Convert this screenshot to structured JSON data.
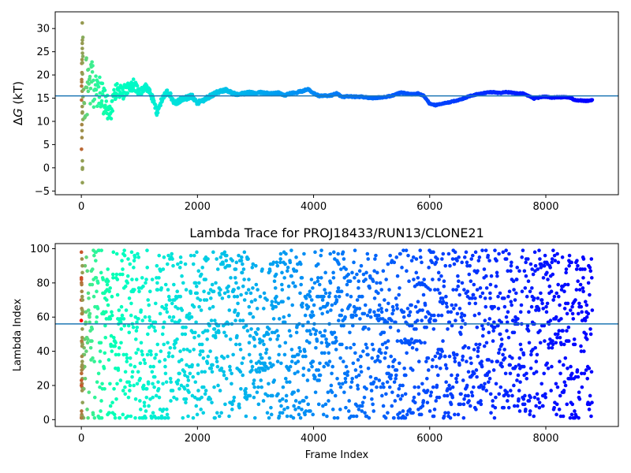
{
  "chart_data": [
    {
      "type": "scatter",
      "title": "",
      "xlabel": "",
      "ylabel": "ΔG (kT)",
      "ylabel_symbol": "Δ",
      "ylabel_var": "G",
      "ylabel_unit": " (kT)",
      "xlim": [
        -450,
        9250
      ],
      "ylim": [
        -5.8,
        33.6
      ],
      "xticks": [
        0,
        2000,
        4000,
        6000,
        8000
      ],
      "yticks": [
        -5,
        0,
        5,
        10,
        15,
        20,
        25,
        30
      ],
      "hline": 15.5,
      "hline_color": "#1f77b4",
      "colormap": "rainbow_r",
      "x_max": 8800,
      "grid": false,
      "trend": [
        [
          0,
          15.5
        ],
        [
          100,
          17
        ],
        [
          200,
          18
        ],
        [
          300,
          17
        ],
        [
          400,
          14
        ],
        [
          500,
          12
        ],
        [
          600,
          17
        ],
        [
          700,
          16
        ],
        [
          800,
          17
        ],
        [
          900,
          18
        ],
        [
          1000,
          16
        ],
        [
          1100,
          17.5
        ],
        [
          1200,
          16
        ],
        [
          1300,
          12
        ],
        [
          1400,
          15
        ],
        [
          1500,
          16.5
        ],
        [
          1600,
          14
        ],
        [
          1700,
          14.5
        ],
        [
          1800,
          15
        ],
        [
          1900,
          15.5
        ],
        [
          2000,
          14
        ],
        [
          2100,
          14.5
        ],
        [
          2200,
          15.3
        ],
        [
          2300,
          16
        ],
        [
          2400,
          16.5
        ],
        [
          2500,
          16.8
        ],
        [
          2600,
          16
        ],
        [
          2700,
          15.8
        ],
        [
          2800,
          16
        ],
        [
          2900,
          16.2
        ],
        [
          3000,
          16
        ],
        [
          3100,
          16.2
        ],
        [
          3200,
          16.1
        ],
        [
          3300,
          16
        ],
        [
          3400,
          16.1
        ],
        [
          3500,
          15.6
        ],
        [
          3600,
          16
        ],
        [
          3700,
          16.2
        ],
        [
          3800,
          16.5
        ],
        [
          3900,
          17
        ],
        [
          4000,
          16
        ],
        [
          4100,
          15.5
        ],
        [
          4200,
          15.5
        ],
        [
          4300,
          15.6
        ],
        [
          4400,
          16
        ],
        [
          4500,
          15.2
        ],
        [
          4600,
          15.4
        ],
        [
          4700,
          15.3
        ],
        [
          4800,
          15.3
        ],
        [
          4900,
          15.2
        ],
        [
          5000,
          15
        ],
        [
          5100,
          15.1
        ],
        [
          5200,
          15.2
        ],
        [
          5300,
          15.4
        ],
        [
          5400,
          15.7
        ],
        [
          5500,
          16.2
        ],
        [
          5600,
          16
        ],
        [
          5700,
          15.8
        ],
        [
          5800,
          16
        ],
        [
          5900,
          15.5
        ],
        [
          6000,
          13.8
        ],
        [
          6100,
          13.5
        ],
        [
          6200,
          13.8
        ],
        [
          6300,
          14
        ],
        [
          6400,
          14.3
        ],
        [
          6500,
          14.6
        ],
        [
          6600,
          15
        ],
        [
          6700,
          15.5
        ],
        [
          6800,
          15.8
        ],
        [
          6900,
          16
        ],
        [
          7000,
          16.2
        ],
        [
          7100,
          16.3
        ],
        [
          7200,
          16.1
        ],
        [
          7300,
          16.3
        ],
        [
          7400,
          16.2
        ],
        [
          7500,
          16
        ],
        [
          7600,
          16
        ],
        [
          7700,
          15.5
        ],
        [
          7800,
          14.9
        ],
        [
          7900,
          15.2
        ],
        [
          8000,
          15.3
        ],
        [
          8100,
          15.1
        ],
        [
          8200,
          15.2
        ],
        [
          8300,
          15.2
        ],
        [
          8400,
          15.2
        ],
        [
          8500,
          14.6
        ],
        [
          8600,
          14.5
        ],
        [
          8700,
          14.4
        ],
        [
          8800,
          14.6
        ]
      ],
      "early_values": [
        31.2,
        28.1,
        27.5,
        26.8,
        24.7,
        23.3,
        22.5,
        20.5,
        20.2,
        19,
        17.6,
        16.5,
        15.3,
        14.6,
        13.2,
        12,
        11.8,
        10.4,
        9.3,
        8,
        6.5,
        4,
        1.5,
        0,
        -0.3,
        -3.2,
        25.7,
        24,
        22.6,
        18.5
      ]
    },
    {
      "type": "scatter",
      "title": "Lambda Trace for PROJ18433/RUN13/CLONE21",
      "xlabel": "Frame Index",
      "ylabel": "Lambda Index",
      "xlim": [
        -450,
        9250
      ],
      "ylim": [
        -4,
        103
      ],
      "xticks": [
        0,
        2000,
        4000,
        6000,
        8000
      ],
      "yticks": [
        0,
        20,
        40,
        60,
        80,
        100
      ],
      "hline": 56,
      "hline_color": "#1f77b4",
      "colormap": "rainbow_r",
      "x_max": 8800,
      "grid": false,
      "lambda_range": [
        0,
        99
      ],
      "frame_step": 4,
      "visit_segments": 12
    }
  ]
}
